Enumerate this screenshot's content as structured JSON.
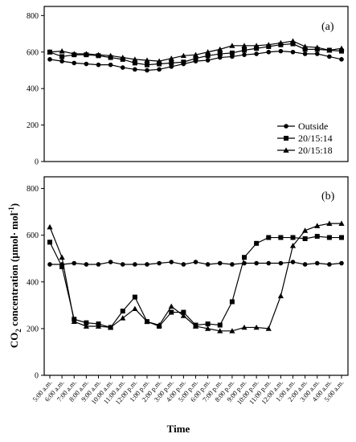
{
  "chart_data": [
    {
      "type": "line",
      "panel_label": "(a)",
      "ylim": [
        0,
        850
      ],
      "yticks": [
        "0",
        "200",
        "400",
        "600",
        "800"
      ],
      "ytick_values": [
        0,
        200,
        400,
        600,
        800
      ],
      "legend_position": "bottom-right",
      "series": [
        {
          "name": "Outside",
          "marker": "circle",
          "values": [
            560,
            550,
            540,
            535,
            530,
            530,
            515,
            505,
            500,
            505,
            520,
            535,
            550,
            555,
            570,
            575,
            585,
            590,
            600,
            605,
            600,
            590,
            590,
            575,
            560
          ]
        },
        {
          "name": "20/15:14",
          "marker": "square",
          "values": [
            600,
            575,
            585,
            585,
            580,
            570,
            560,
            540,
            530,
            535,
            540,
            545,
            565,
            580,
            590,
            595,
            610,
            620,
            630,
            640,
            645,
            615,
            615,
            610,
            605
          ]
        },
        {
          "name": "20/15:18",
          "marker": "triangle",
          "values": [
            600,
            605,
            590,
            590,
            585,
            580,
            570,
            560,
            555,
            550,
            565,
            580,
            585,
            600,
            615,
            635,
            635,
            635,
            640,
            650,
            660,
            630,
            625,
            610,
            620
          ]
        }
      ]
    },
    {
      "type": "line",
      "panel_label": "(b)",
      "ylim": [
        0,
        850
      ],
      "yticks": [
        "0",
        "200",
        "400",
        "600",
        "800"
      ],
      "ytick_values": [
        0,
        200,
        400,
        600,
        800
      ],
      "categories": [
        "5:00 a.m.",
        "6:00 a.m.",
        "7:00 a.m.",
        "8:00 a.m.",
        "9:00 a.m.",
        "10:00 a.m.",
        "11:00 a.m.",
        "12:00 p.m.",
        "1:00 p.m.",
        "2:00 p.m.",
        "3:00 p.m.",
        "4:00 p.m.",
        "5:00 p.m.",
        "6:00 p.m.",
        "7:00 p.m.",
        "8:00 p.m.",
        "9:00 p.m.",
        "10:00 p.m.",
        "11:00 p.m.",
        "12:00 a.m.",
        "1:00 a.m.",
        "2:00 a.m.",
        "3:00 a.m.",
        "4:00 a.m.",
        "5:00 a.m."
      ],
      "ylabel_prefix": "CO",
      "ylabel_subscript": "2",
      "ylabel_suffix": " concentration (µmol· mol",
      "ylabel_superscript": "-1",
      "ylabel_close": ")",
      "xlabel": "Time",
      "series": [
        {
          "name": "Outside",
          "marker": "circle",
          "values": [
            475,
            475,
            480,
            475,
            475,
            485,
            475,
            475,
            475,
            480,
            485,
            475,
            485,
            475,
            480,
            475,
            480,
            480,
            480,
            480,
            485,
            475,
            480,
            475,
            480
          ]
        },
        {
          "name": "20/15:14",
          "marker": "square",
          "values": [
            570,
            465,
            240,
            225,
            220,
            205,
            275,
            335,
            230,
            210,
            270,
            270,
            215,
            220,
            215,
            315,
            505,
            565,
            590,
            590,
            590,
            585,
            595,
            590,
            590
          ]
        },
        {
          "name": "20/15:18",
          "marker": "triangle",
          "values": [
            635,
            505,
            230,
            210,
            210,
            205,
            245,
            285,
            230,
            215,
            295,
            255,
            210,
            200,
            190,
            190,
            205,
            205,
            200,
            340,
            555,
            620,
            640,
            650,
            650
          ]
        }
      ]
    }
  ]
}
